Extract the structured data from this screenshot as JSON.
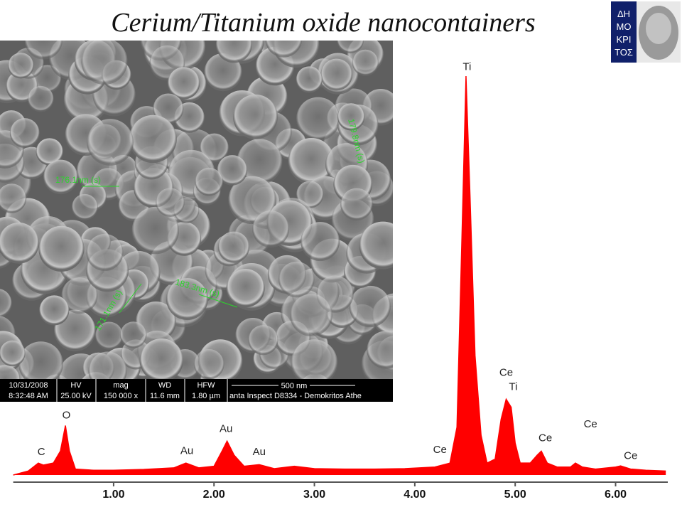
{
  "title": "Cerium/Titanium oxide nanocontainers",
  "logo": {
    "lines": [
      "ΔΗ",
      "ΜΟ",
      "ΚΡΙ",
      "ΤΟΣ"
    ]
  },
  "sem_image": {
    "measurements": [
      "176.1nm (s)",
      "179.8nm (s)",
      "171.1nm (s)",
      "183.3nm (s)"
    ],
    "info_bar": {
      "date": "10/31/2008",
      "time": "8:32:48 AM",
      "hv_label": "HV",
      "hv": "25.00 kV",
      "mag_label": "mag",
      "mag": "150 000 x",
      "wd_label": "WD",
      "wd": "11.6 mm",
      "hfw_label": "HFW",
      "hfw": "1.80 µm",
      "scale": "500 nm",
      "instrument": "anta Inspect D8334 - Demokritos Athe"
    }
  },
  "chart_data": {
    "type": "area",
    "x": [
      0.0,
      0.15,
      0.25,
      0.3,
      0.4,
      0.47,
      0.52,
      0.56,
      0.62,
      0.8,
      1.0,
      1.3,
      1.6,
      1.72,
      1.85,
      2.0,
      2.08,
      2.13,
      2.2,
      2.3,
      2.45,
      2.6,
      2.8,
      3.0,
      3.3,
      3.6,
      3.9,
      4.2,
      4.35,
      4.42,
      4.47,
      4.51,
      4.55,
      4.6,
      4.66,
      4.72,
      4.8,
      4.86,
      4.91,
      4.96,
      5.0,
      5.05,
      5.15,
      5.22,
      5.26,
      5.32,
      5.42,
      5.55,
      5.6,
      5.67,
      5.8,
      6.0,
      6.05,
      6.15,
      6.3,
      6.5
    ],
    "series": [
      {
        "color": "#ff0000",
        "values": [
          0,
          1,
          3,
          2.5,
          3,
          6,
          12.4,
          6,
          1.5,
          1.2,
          1.2,
          1.4,
          1.8,
          3,
          1.8,
          2.2,
          6,
          8.5,
          5,
          2.2,
          2.6,
          1.6,
          2.2,
          1.6,
          1.5,
          1.5,
          1.6,
          2,
          3,
          12,
          60,
          100,
          70,
          30,
          10,
          3,
          4,
          14,
          19,
          17,
          8,
          3,
          3,
          5,
          6,
          3,
          2,
          2,
          3,
          2,
          1.5,
          2,
          2.3,
          1.5,
          1.2,
          1
        ]
      }
    ],
    "xlim": [
      0,
      6.52
    ],
    "ylim": [
      0,
      100
    ],
    "xticks": [
      {
        "value": 1,
        "label": "1.00"
      },
      {
        "value": 2,
        "label": "2.00"
      },
      {
        "value": 3,
        "label": "3.00"
      },
      {
        "value": 4,
        "label": "4.00"
      },
      {
        "value": 5,
        "label": "5.00"
      },
      {
        "value": 6,
        "label": "6.00"
      }
    ],
    "annotations": [
      {
        "text": "C",
        "x": 0.28,
        "y": 5.0
      },
      {
        "text": "O",
        "x": 0.53,
        "y": 14.2
      },
      {
        "text": "Au",
        "x": 1.73,
        "y": 5.3
      },
      {
        "text": "Au",
        "x": 2.12,
        "y": 10.8
      },
      {
        "text": "Au",
        "x": 2.45,
        "y": 5.0
      },
      {
        "text": "Ce",
        "x": 4.25,
        "y": 5.5
      },
      {
        "text": "Ti",
        "x": 4.52,
        "y": 101.5
      },
      {
        "text": "Ce",
        "x": 4.91,
        "y": 24.9
      },
      {
        "text": "Ti",
        "x": 4.98,
        "y": 21.3
      },
      {
        "text": "Ce",
        "x": 5.3,
        "y": 8.5
      },
      {
        "text": "Ce",
        "x": 5.75,
        "y": 11.9
      },
      {
        "text": "Ce",
        "x": 6.15,
        "y": 4.0
      }
    ]
  }
}
